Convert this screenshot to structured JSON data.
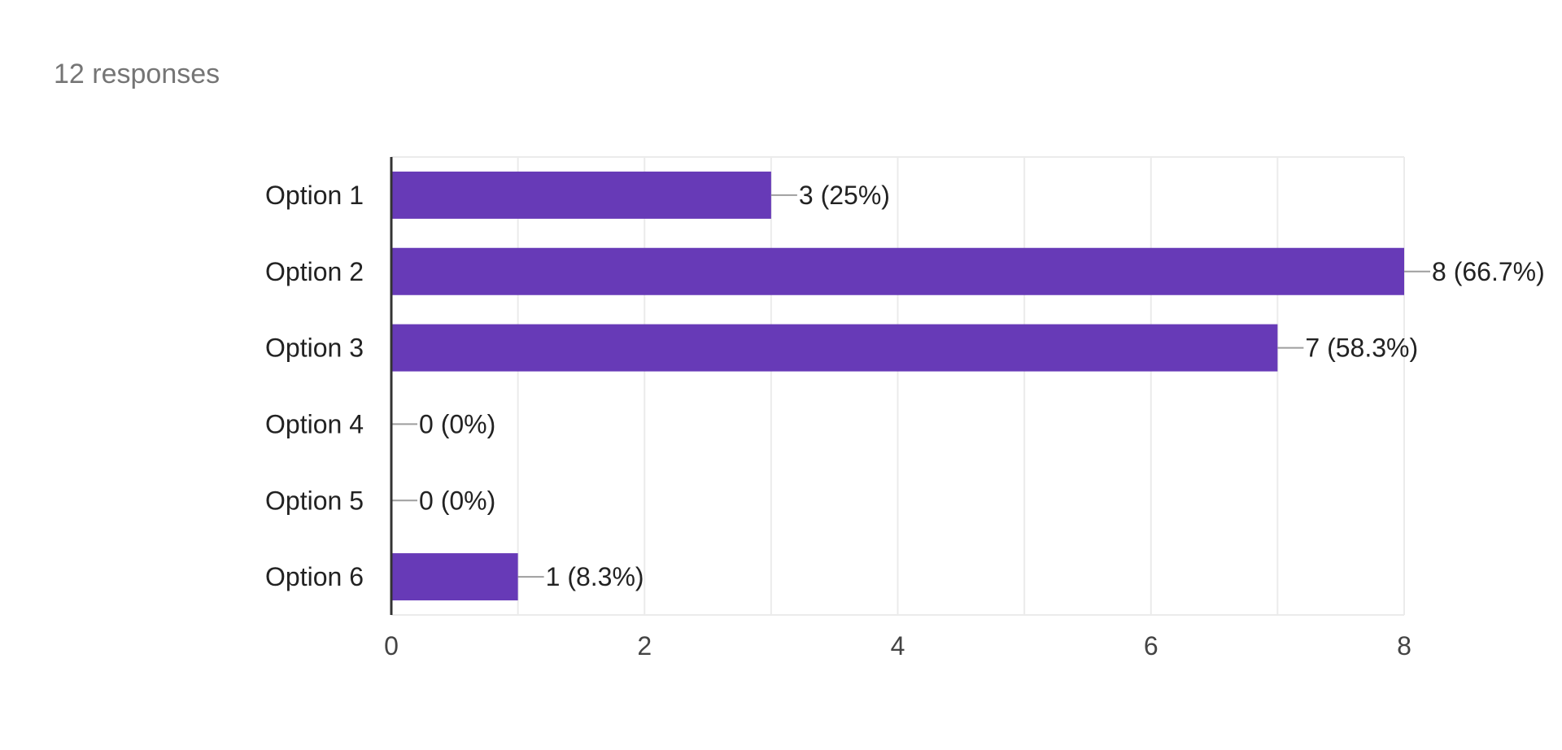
{
  "summary": {
    "responses_text": "12 responses"
  },
  "colors": {
    "bar": "#673ab7",
    "grid": "#ebebeb",
    "axis": "#333333",
    "leader": "#9e9e9e"
  },
  "chart_data": {
    "type": "bar",
    "orientation": "horizontal",
    "categories": [
      "Option 1",
      "Option 2",
      "Option 3",
      "Option 4",
      "Option 5",
      "Option 6"
    ],
    "values": [
      3,
      8,
      7,
      0,
      0,
      1
    ],
    "data_labels": [
      "3 (25%)",
      "8 (66.7%)",
      "7 (58.3%)",
      "0 (0%)",
      "0 (0%)",
      "1 (8.3%)"
    ],
    "xlim": [
      0,
      8
    ],
    "x_ticks": [
      "0",
      "2",
      "4",
      "6",
      "8"
    ],
    "grid": true,
    "legend": "none"
  }
}
